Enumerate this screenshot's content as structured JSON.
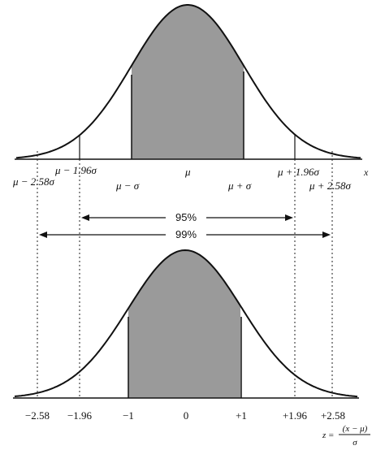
{
  "top_panel": {
    "axis_variable": "x",
    "labels": {
      "mu": "μ",
      "mu_minus_sigma": "μ − σ",
      "mu_plus_sigma": "μ + σ",
      "mu_minus_196": "μ − 1.96σ",
      "mu_plus_196": "μ + 1.96σ",
      "mu_minus_258": "μ − 2.58σ",
      "mu_plus_258": "μ + 2.58σ"
    }
  },
  "intervals": {
    "ninety_five": "95%",
    "ninety_nine": "99%"
  },
  "bottom_panel": {
    "ticks": {
      "m258": "−2.58",
      "m196": "−1.96",
      "m1": "−1",
      "zero": "0",
      "p1": "+1",
      "p196": "+1.96",
      "p258": "+2.58"
    },
    "z_formula": {
      "lhs": "z =",
      "numerator": "(x − μ)",
      "denominator": "σ"
    }
  },
  "colors": {
    "shade": "#9a9a9a",
    "line": "#111111"
  }
}
